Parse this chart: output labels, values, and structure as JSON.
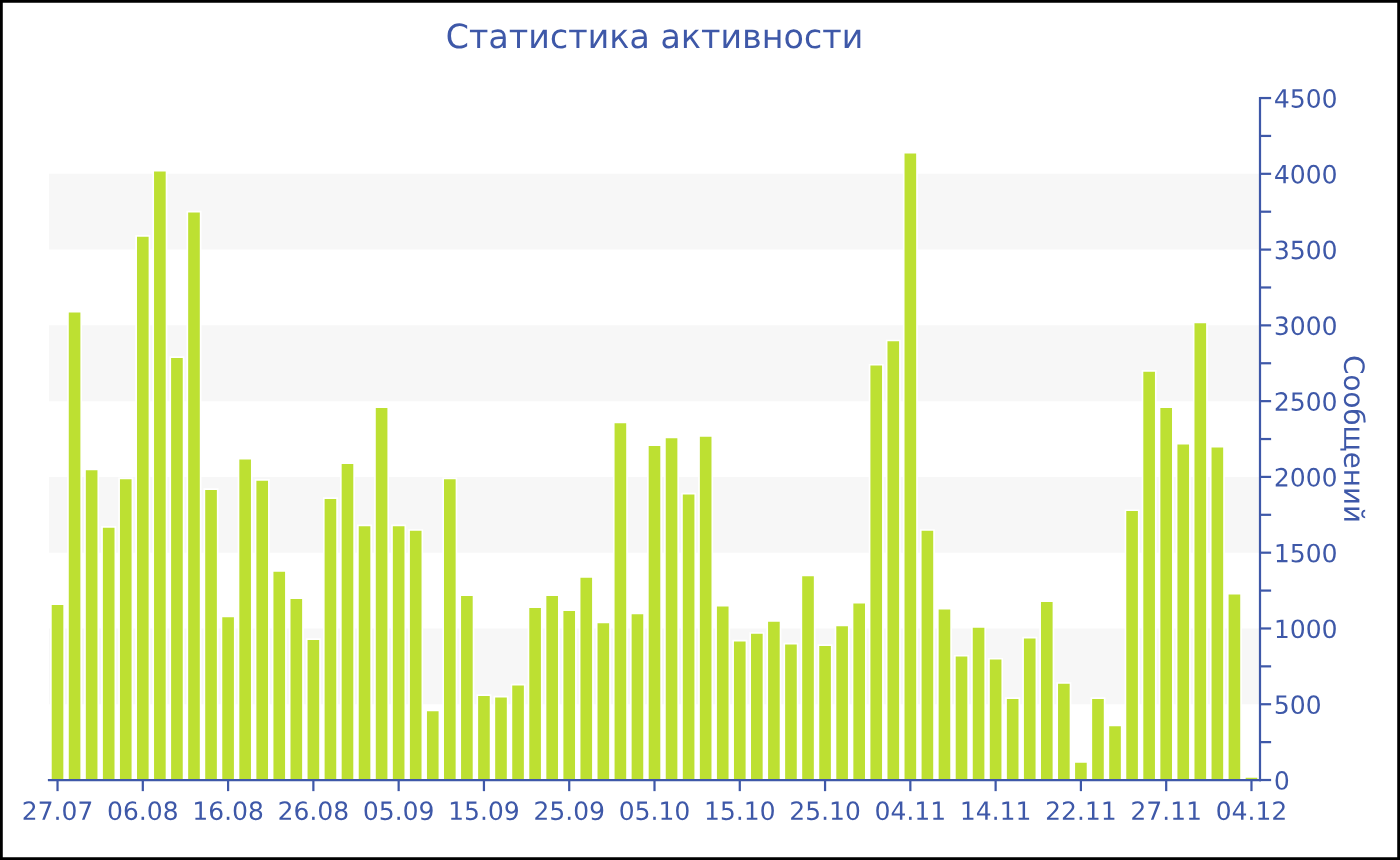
{
  "chart_data": {
    "type": "bar",
    "title": "Статистика активности",
    "ylabel": "Сообщений",
    "categories": [
      "27.07",
      null,
      null,
      null,
      null,
      "06.08",
      null,
      null,
      null,
      null,
      "16.08",
      null,
      null,
      null,
      null,
      "26.08",
      null,
      null,
      null,
      null,
      "05.09",
      null,
      null,
      null,
      null,
      "15.09",
      null,
      null,
      null,
      null,
      "25.09",
      null,
      null,
      null,
      null,
      "05.10",
      null,
      null,
      null,
      null,
      "15.10",
      null,
      null,
      null,
      null,
      "25.10",
      null,
      null,
      null,
      null,
      "04.11",
      null,
      null,
      null,
      null,
      "14.11",
      null,
      null,
      null,
      null,
      "22.11",
      null,
      null,
      null,
      null,
      "27.11",
      null,
      null,
      null,
      null,
      "04.12"
    ],
    "values": [
      1160,
      3090,
      2050,
      1670,
      1990,
      3590,
      4020,
      2790,
      3750,
      1920,
      1080,
      2120,
      1980,
      1380,
      1200,
      930,
      1860,
      2090,
      1680,
      2460,
      1680,
      1650,
      460,
      1990,
      1220,
      560,
      550,
      630,
      1140,
      1220,
      1120,
      1340,
      1040,
      2360,
      1100,
      2210,
      2260,
      1890,
      2270,
      1150,
      920,
      970,
      1050,
      900,
      1350,
      890,
      1020,
      1170,
      2740,
      2900,
      4140,
      1650,
      1130,
      820,
      1010,
      800,
      540,
      940,
      1180,
      640,
      120,
      540,
      360,
      1780,
      2700,
      2460,
      2220,
      3020,
      2200,
      1230,
      20
    ],
    "color": "#bde032",
    "ylim": [
      0,
      4500
    ],
    "yticks": [
      0,
      {
        "value": 250,
        "label": null
      },
      500,
      {
        "value": 750,
        "label": null
      },
      1000,
      {
        "value": 1250,
        "label": null
      },
      1500,
      {
        "value": 1750,
        "label": null
      },
      2000,
      {
        "value": 2250,
        "label": null
      },
      2500,
      {
        "value": 2750,
        "label": null
      },
      3000,
      {
        "value": 3250,
        "label": null
      },
      3500,
      {
        "value": 3750,
        "label": null
      },
      4000,
      {
        "value": 4250,
        "label": null
      },
      4500
    ],
    "bands": [
      {
        "axis": "y",
        "from": 500,
        "to": 1000,
        "color": "#f7f7f7"
      },
      {
        "axis": "y",
        "from": 1500,
        "to": 2000,
        "color": "#f7f7f7"
      },
      {
        "axis": "y",
        "from": 2500,
        "to": 3000,
        "color": "#f7f7f7"
      },
      {
        "axis": "y",
        "from": 3500,
        "to": 4000,
        "color": "#f7f7f7"
      }
    ],
    "grid": false,
    "legend": false
  }
}
